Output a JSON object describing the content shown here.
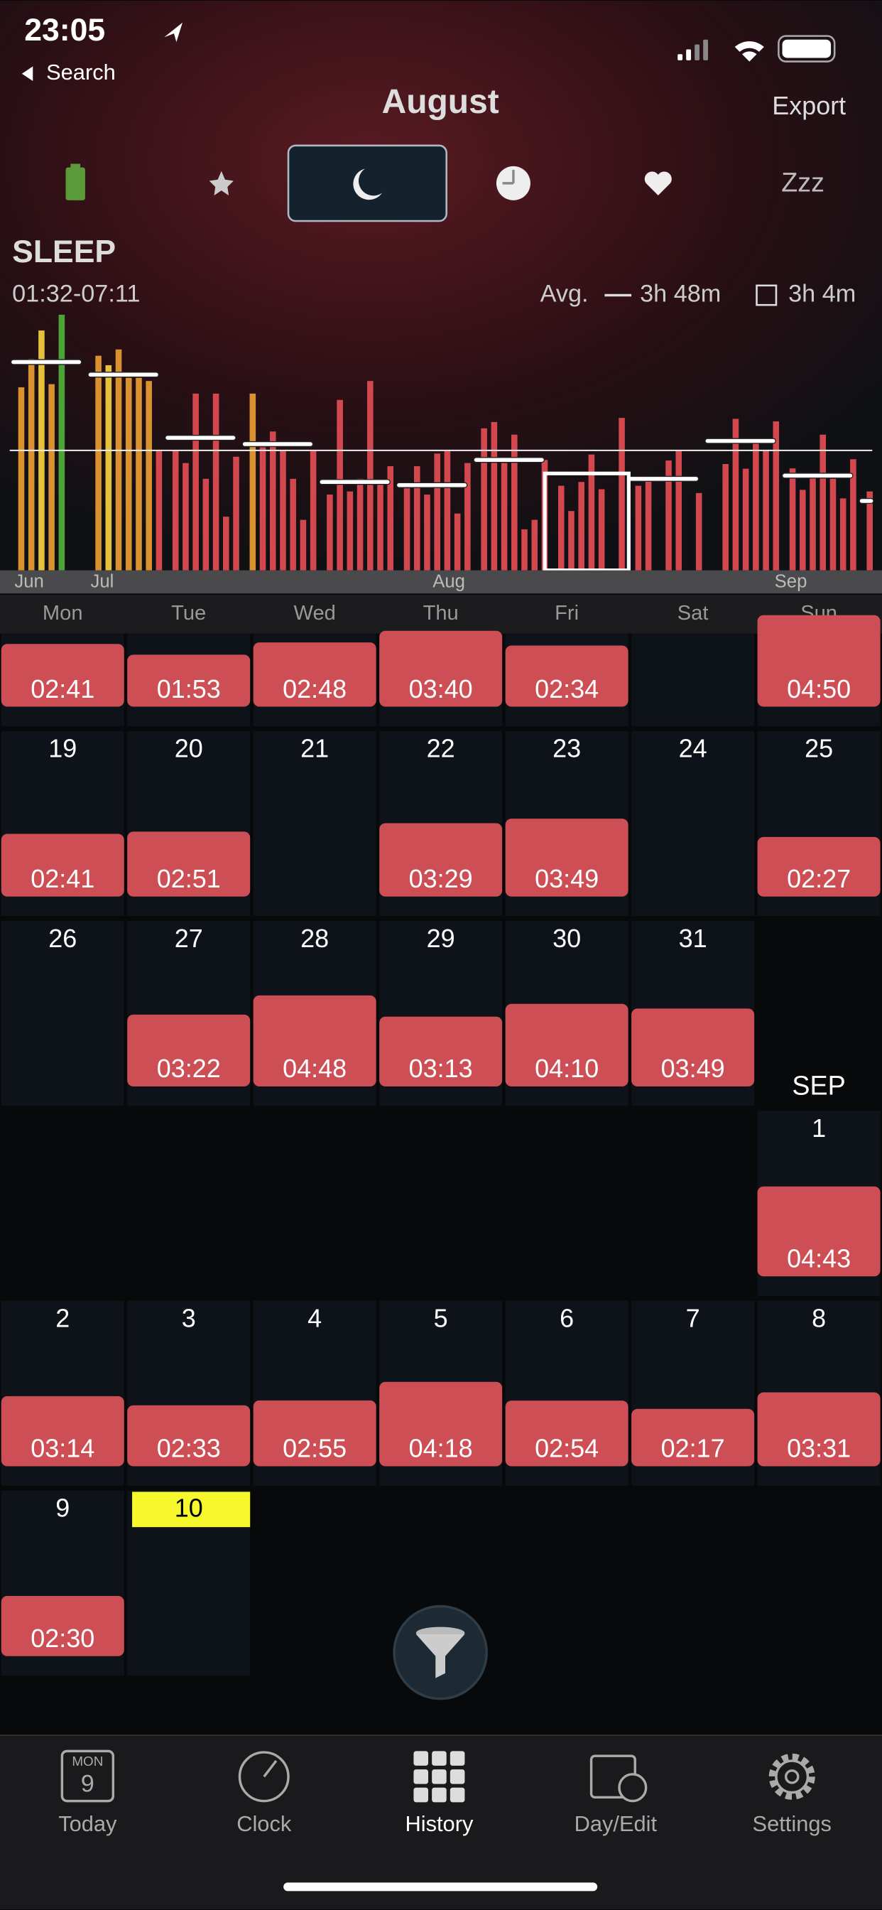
{
  "status_bar": {
    "time": "23:05",
    "back": "Search"
  },
  "header": {
    "title": "August",
    "action": "Export"
  },
  "metric_tab_text": "Zzz",
  "chart": {
    "title": "SLEEP",
    "range": "01:32-07:11",
    "avg_label": "Avg.",
    "avg": {
      "value": 3.8,
      "label": "3h 48m"
    },
    "selected_avg": {
      "value": 3.07,
      "label": "3h 4m"
    },
    "selected_week": 7,
    "ylim": [
      0,
      8.1
    ],
    "months": [
      "Jun",
      "Jul",
      "Aug",
      "Sep"
    ],
    "values": [
      5.8,
      6.7,
      7.6,
      5.9,
      8.1,
      0,
      0,
      6.8,
      6.5,
      7.0,
      6.1,
      6.1,
      6.0,
      3.8,
      3.8,
      3.4,
      5.6,
      2.9,
      5.6,
      1.7,
      3.6,
      5.6,
      3.9,
      4.4,
      3.8,
      2.9,
      1.6,
      3.8,
      2.4,
      5.4,
      2.5,
      2.9,
      6.0,
      2.8,
      3.3,
      2.6,
      3.3,
      2.4,
      3.7,
      3.8,
      1.8,
      3.4,
      4.5,
      4.7,
      3.4,
      4.3,
      1.3,
      1.6,
      3.5,
      2.68,
      1.88,
      2.8,
      3.67,
      2.57,
      0,
      4.83,
      2.68,
      2.85,
      0,
      3.48,
      3.82,
      0,
      2.45,
      0,
      3.37,
      4.8,
      3.22,
      4.17,
      3.82,
      4.72,
      3.23,
      2.55,
      2.92,
      4.3,
      2.9,
      2.28,
      3.52,
      2.5
    ],
    "colors": [
      "#d9922f",
      "#d9922f",
      "#e6c13b",
      "#d9922f",
      "#4ba436",
      "#d3484f",
      "#d3484f",
      "#d9922f",
      "#e6c13b",
      "#d9922f",
      "#d9922f",
      "#d9922f",
      "#d9922f",
      "#d3484f",
      "#d3484f",
      "#d3484f",
      "#d3484f",
      "#d3484f",
      "#d3484f",
      "#d3484f",
      "#d3484f",
      "#d9922f",
      "#d3484f",
      "#d3484f",
      "#d3484f",
      "#d3484f",
      "#d3484f",
      "#d3484f",
      "#d3484f",
      "#d3484f",
      "#d3484f",
      "#d3484f",
      "#d3484f",
      "#d3484f",
      "#d3484f",
      "#d3484f",
      "#d3484f",
      "#d3484f",
      "#d3484f",
      "#d3484f",
      "#d3484f",
      "#d3484f",
      "#d3484f",
      "#d3484f",
      "#d3484f",
      "#d3484f",
      "#d3484f",
      "#d3484f",
      "#d3484f",
      "#d3484f",
      "#d3484f",
      "#d3484f",
      "#d3484f",
      "#d3484f",
      "#d3484f",
      "#d3484f",
      "#d3484f",
      "#d3484f",
      "#d3484f",
      "#d3484f",
      "#d3484f",
      "#d3484f",
      "#d3484f",
      "#d3484f",
      "#d3484f",
      "#d3484f",
      "#d3484f",
      "#d3484f",
      "#d3484f",
      "#d3484f",
      "#d3484f",
      "#d3484f",
      "#d3484f",
      "#d3484f",
      "#d3484f",
      "#d3484f",
      "#d3484f",
      "#d3484f"
    ],
    "week_avgs": [
      6.6,
      6.2,
      4.2,
      4.0,
      2.8,
      2.7,
      3.5,
      null,
      2.9,
      4.1,
      3.0,
      2.2
    ]
  },
  "calendar": {
    "weekdays": [
      "Mon",
      "Tue",
      "Wed",
      "Thu",
      "Fri",
      "Sat",
      "Sun"
    ],
    "month_label": "SEP",
    "today": 10,
    "rows": [
      {
        "days": [
          null,
          null,
          null,
          null,
          null,
          null,
          null
        ],
        "times": [
          "02:41",
          "01:53",
          "02:48",
          "03:40",
          "02:34",
          null,
          "04:50"
        ]
      },
      {
        "days": [
          19,
          20,
          21,
          22,
          23,
          24,
          25
        ],
        "times": [
          "02:41",
          "02:51",
          null,
          "03:29",
          "03:49",
          null,
          "02:27"
        ]
      },
      {
        "days": [
          26,
          27,
          28,
          29,
          30,
          31,
          null
        ],
        "times": [
          null,
          "03:22",
          "04:48",
          "03:13",
          "04:10",
          "03:49",
          null
        ]
      },
      {
        "days": [
          null,
          null,
          null,
          null,
          null,
          null,
          1
        ],
        "times": [
          null,
          null,
          null,
          null,
          null,
          null,
          "04:43"
        ]
      },
      {
        "days": [
          2,
          3,
          4,
          5,
          6,
          7,
          8
        ],
        "times": [
          "03:14",
          "02:33",
          "02:55",
          "04:18",
          "02:54",
          "02:17",
          "03:31"
        ]
      },
      {
        "days": [
          9,
          10,
          null,
          null,
          null,
          null,
          null
        ],
        "times": [
          "02:30",
          null,
          null,
          null,
          null,
          null,
          null
        ]
      }
    ]
  },
  "today_icon": {
    "weekday": "MON",
    "day": "9"
  },
  "tab_bar": [
    "Today",
    "Clock",
    "History",
    "Day/Edit",
    "Settings"
  ]
}
